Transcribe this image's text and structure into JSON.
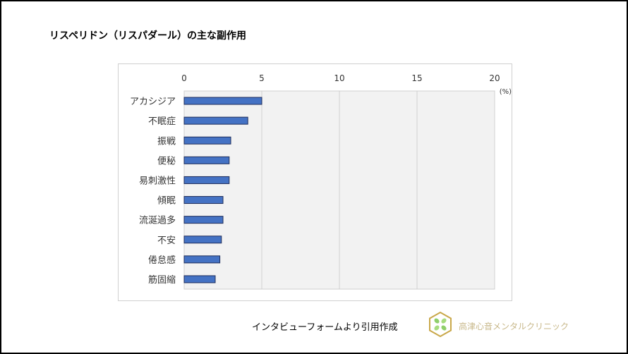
{
  "title": "リスペリドン（リスパダール）の主な副作用",
  "source_note": "インタビューフォームより引用作成",
  "clinic_logo_text": "高津心音メンタルクリニック",
  "colors": {
    "bar": "#4472c4",
    "bar_border": "#1f2d5a",
    "plot_bg": "#f2f2f2",
    "grid": "#d0d0d0"
  },
  "chart_data": {
    "type": "bar",
    "orientation": "horizontal",
    "title": "",
    "unit_label": "(%)",
    "categories": [
      "アカシジア",
      "不眠症",
      "振戦",
      "便秘",
      "易刺激性",
      "傾眠",
      "流涎過多",
      "不安",
      "倦怠感",
      "筋固縮"
    ],
    "values": [
      5.0,
      4.1,
      3.0,
      2.9,
      2.9,
      2.5,
      2.5,
      2.4,
      2.3,
      2.0
    ],
    "xlim": [
      0,
      20
    ],
    "x_ticks": [
      "0",
      "5",
      "10",
      "15",
      "20"
    ],
    "x_axis_position": "top",
    "grid": true,
    "legend": "none"
  }
}
